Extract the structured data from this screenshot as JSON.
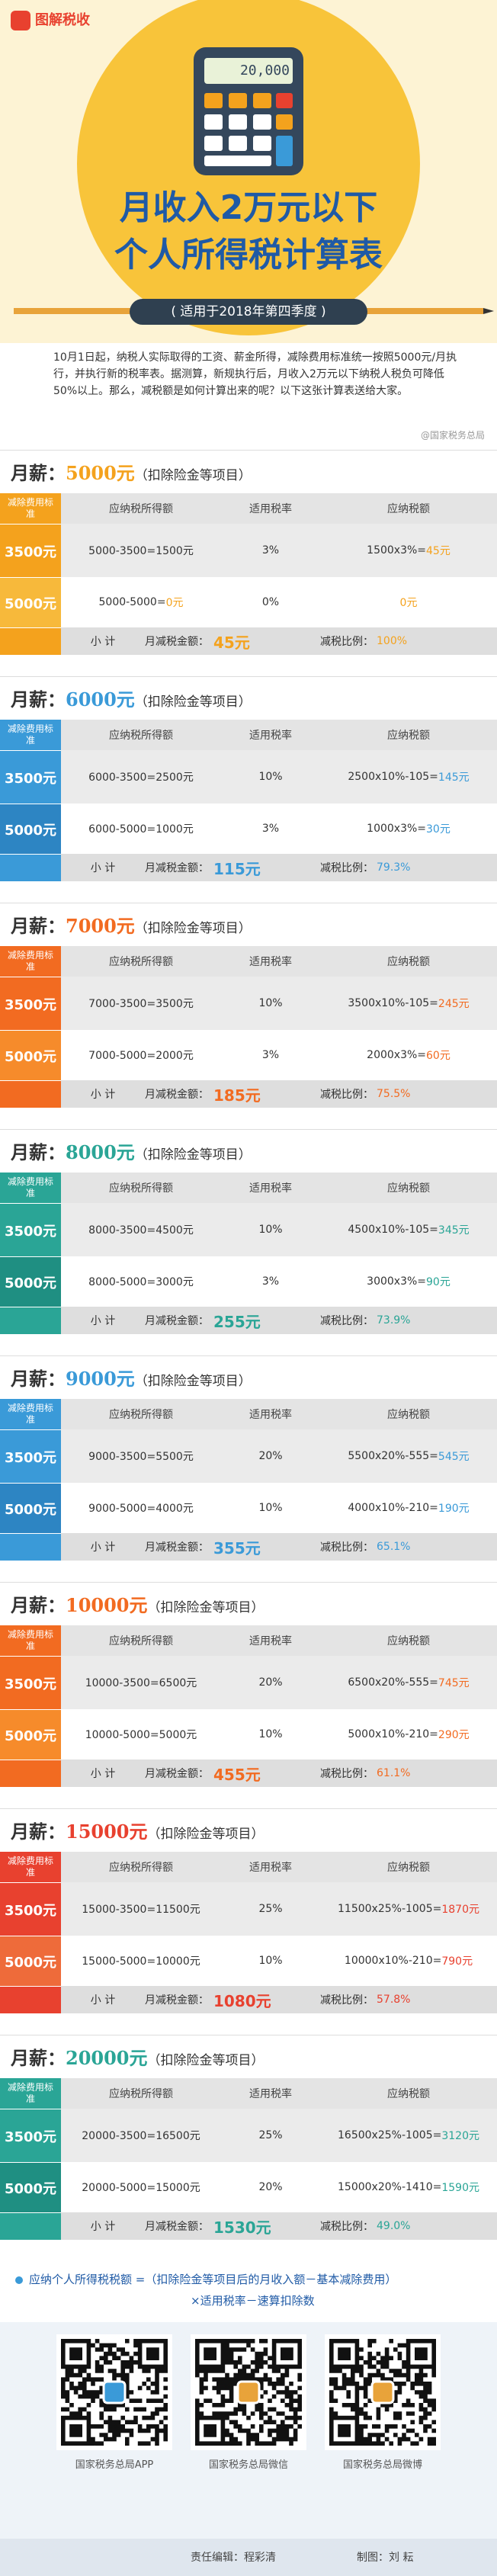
{
  "header": {
    "logo": "图解税收",
    "calculator_display": "20,000",
    "title_line1": "月收入2万元以下",
    "title_line2": "个人所得税计算表",
    "subtitle": "( 适用于2018年第四季度 )",
    "intro": "10月1日起，纳税人实际取得的工资、薪金所得，减除费用标准统一按照5000元/月执行，并执行新的税率表。据测算，新规执行后，月收入2万元以下纳税人税负可降低50%以上。那么，减税额是如何计算出来的呢？以下这张计算表送给大家。",
    "source": "@国家税务总局"
  },
  "labels": {
    "salary": "月薪：",
    "deduction_header": "减除费用标准",
    "income_header": "应纳税所得额",
    "rate_header": "适用税率",
    "tax_header": "应纳税额",
    "subtotal": "小 计",
    "reduction": "月减税金额：",
    "ratio": "减税比例："
  },
  "sections": [
    {
      "amount": "5000元",
      "note": "（扣除险金等项目）",
      "color": "#f4a21d",
      "color2": "#f7b93b",
      "rows": [
        {
          "deduction": "3500元",
          "income": "5000-3500=1500元",
          "rate": "3%",
          "tax_expr": "1500x3%=",
          "tax": "45元"
        },
        {
          "deduction": "5000元",
          "income": "5000-5000=",
          "income_result": "0元",
          "rate": "0%",
          "tax": "0元"
        }
      ],
      "reduction": "45元",
      "ratio": "100%"
    },
    {
      "amount": "6000元",
      "note": "（扣除险金等项目）",
      "color": "#3a9ad8",
      "color2": "#2d85c3",
      "rows": [
        {
          "deduction": "3500元",
          "income": "6000-3500=2500元",
          "rate": "10%",
          "tax_expr": "2500x10%-105=",
          "tax": "145元"
        },
        {
          "deduction": "5000元",
          "income": "6000-5000=1000元",
          "rate": "3%",
          "tax_expr": "1000x3%=",
          "tax": "30元"
        }
      ],
      "reduction": "115元",
      "ratio": "79.3%"
    },
    {
      "amount": "7000元",
      "note": "（扣除险金等项目）",
      "color": "#f26b21",
      "color2": "#f68b2b",
      "rows": [
        {
          "deduction": "3500元",
          "income": "7000-3500=3500元",
          "rate": "10%",
          "tax_expr": "3500x10%-105=",
          "tax": "245元"
        },
        {
          "deduction": "5000元",
          "income": "7000-5000=2000元",
          "rate": "3%",
          "tax_expr": "2000x3%=",
          "tax": "60元"
        }
      ],
      "reduction": "185元",
      "ratio": "75.5%"
    },
    {
      "amount": "8000元",
      "note": "（扣除险金等项目）",
      "color": "#2aa596",
      "color2": "#1f8f82",
      "rows": [
        {
          "deduction": "3500元",
          "income": "8000-3500=4500元",
          "rate": "10%",
          "tax_expr": "4500x10%-105=",
          "tax": "345元"
        },
        {
          "deduction": "5000元",
          "income": "8000-5000=3000元",
          "rate": "3%",
          "tax_expr": "3000x3%=",
          "tax": "90元"
        }
      ],
      "reduction": "255元",
      "ratio": "73.9%"
    },
    {
      "amount": "9000元",
      "note": "（扣除险金等项目）",
      "color": "#3a9ad8",
      "color2": "#2d85c3",
      "rows": [
        {
          "deduction": "3500元",
          "income": "9000-3500=5500元",
          "rate": "20%",
          "tax_expr": "5500x20%-555=",
          "tax": "545元"
        },
        {
          "deduction": "5000元",
          "income": "9000-5000=4000元",
          "rate": "10%",
          "tax_expr": "4000x10%-210=",
          "tax": "190元"
        }
      ],
      "reduction": "355元",
      "ratio": "65.1%"
    },
    {
      "amount": "10000元",
      "note": "（扣除险金等项目）",
      "color": "#f26b21",
      "color2": "#f68b2b",
      "rows": [
        {
          "deduction": "3500元",
          "income": "10000-3500=6500元",
          "rate": "20%",
          "tax_expr": "6500x20%-555=",
          "tax": "745元"
        },
        {
          "deduction": "5000元",
          "income": "10000-5000=5000元",
          "rate": "10%",
          "tax_expr": "5000x10%-210=",
          "tax": "290元"
        }
      ],
      "reduction": "455元",
      "ratio": "61.1%"
    },
    {
      "amount": "15000元",
      "note": "（扣除险金等项目）",
      "color": "#e8412f",
      "color2": "#ee6b3a",
      "rows": [
        {
          "deduction": "3500元",
          "income": "15000-3500=11500元",
          "rate": "25%",
          "tax_expr": "11500x25%-1005=",
          "tax": "1870元"
        },
        {
          "deduction": "5000元",
          "income": "15000-5000=10000元",
          "rate": "10%",
          "tax_expr": "10000x10%-210=",
          "tax": "790元"
        }
      ],
      "reduction": "1080元",
      "ratio": "57.8%"
    },
    {
      "amount": "20000元",
      "note": "（扣除险金等项目）",
      "color": "#2aa596",
      "color2": "#1f8f82",
      "rows": [
        {
          "deduction": "3500元",
          "income": "20000-3500=16500元",
          "rate": "25%",
          "tax_expr": "16500x25%-1005=",
          "tax": "3120元"
        },
        {
          "deduction": "5000元",
          "income": "20000-5000=15000元",
          "rate": "20%",
          "tax_expr": "15000x20%-1410=",
          "tax": "1590元"
        }
      ],
      "reduction": "1530元",
      "ratio": "49.0%"
    }
  ],
  "footer": {
    "formula_line1": "应纳个人所得税税额 =（扣除险金等项目后的月收入额－基本减除费用）",
    "formula_line2": "×适用税率－速算扣除数",
    "qr_captions": [
      "国家税务总局APP",
      "国家税务总局微信",
      "国家税务总局微博"
    ],
    "editor": "责任编辑：程彩清",
    "designer": "制图：刘 耘"
  }
}
